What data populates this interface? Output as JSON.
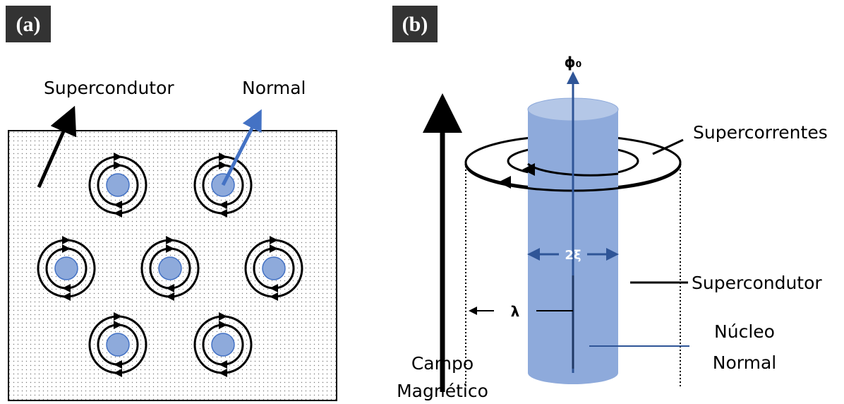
{
  "panel_a": {
    "label": "(a)",
    "superconductor": "Supercondutor",
    "normal": "Normal"
  },
  "panel_b": {
    "label": "(b)",
    "flux": "ϕ₀",
    "supercurrents": "Supercorrentes",
    "coherence": "2ξ",
    "penetration": "λ",
    "superconductor": "Supercondutor",
    "core": [
      "Núcleo",
      "Normal"
    ],
    "field": [
      "Campo",
      "Magnético"
    ]
  }
}
